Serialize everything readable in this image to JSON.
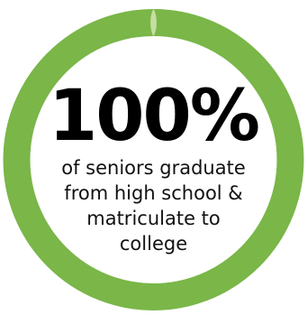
{
  "stat": {
    "value": "100%",
    "caption_lines": [
      "of seniors graduate",
      "from high school &",
      "matriculate to",
      "college"
    ]
  },
  "ring": {
    "fill_fraction": 1.0,
    "color": "#7ab648",
    "seam_color": "#c6de9f"
  }
}
